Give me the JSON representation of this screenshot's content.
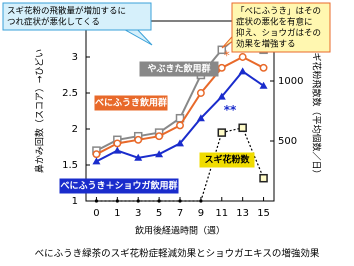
{
  "chart_data": {
    "type": "line",
    "title": "べにふうき緑茶のスギ花粉症軽減効果とショウガエキスの増強効果",
    "x_label": "飲用後経過時間（週）",
    "y_label": "鼻かみ回数（スコア）→ひどい",
    "y2_label": "スギ花粉飛散数（平均個数／日）",
    "categories": [
      "0",
      "1",
      "3",
      "5",
      "7",
      "9",
      "11",
      "13",
      "15"
    ],
    "ylim": [
      1,
      3.5
    ],
    "yticks": [
      1,
      1.5,
      2,
      2.5,
      3
    ],
    "y2lim": [
      0,
      1500
    ],
    "y2ticks": [
      500,
      1000
    ],
    "series": [
      {
        "name": "やぶきた飲用群",
        "color": "#888888",
        "marker": "square",
        "values": [
          1.7,
          1.85,
          1.9,
          1.95,
          2.15,
          2.75,
          3.1,
          3.35,
          3.1
        ]
      },
      {
        "name": "べにふうき飲用群",
        "color": "#e8692a",
        "marker": "circle",
        "values": [
          1.65,
          1.8,
          1.85,
          1.9,
          2.05,
          2.5,
          2.85,
          3.0,
          2.85
        ]
      },
      {
        "name": "べにふうき＋ショウガ飲用群",
        "color": "#1a2ccc",
        "marker": "triangle",
        "values": [
          1.55,
          1.7,
          1.6,
          1.65,
          1.8,
          2.15,
          2.45,
          2.8,
          2.6
        ]
      },
      {
        "name": "スギ花粉数",
        "color": "#f0dc00",
        "marker": "square",
        "axis": "y2",
        "values": [
          0,
          0,
          0,
          0,
          0,
          0,
          570,
          610,
          190
        ]
      }
    ],
    "annotations": [
      {
        "text": "*",
        "color": "#e8692a"
      },
      {
        "text": "**",
        "color": "#1a2ccc"
      }
    ],
    "callouts": [
      {
        "lines": [
          "スギ花粉の飛散量が増加するに",
          "つれ症状が悪化してくる"
        ],
        "fill": "#d6f0fb",
        "border": "#3aa0d8"
      },
      {
        "lines": [
          "「べにふうき」はその",
          "症状の悪化を有意に",
          "抑え、ショウガはその",
          "効果を増強する"
        ],
        "fill": "#fff7b0",
        "border": "#e8692a"
      }
    ]
  }
}
